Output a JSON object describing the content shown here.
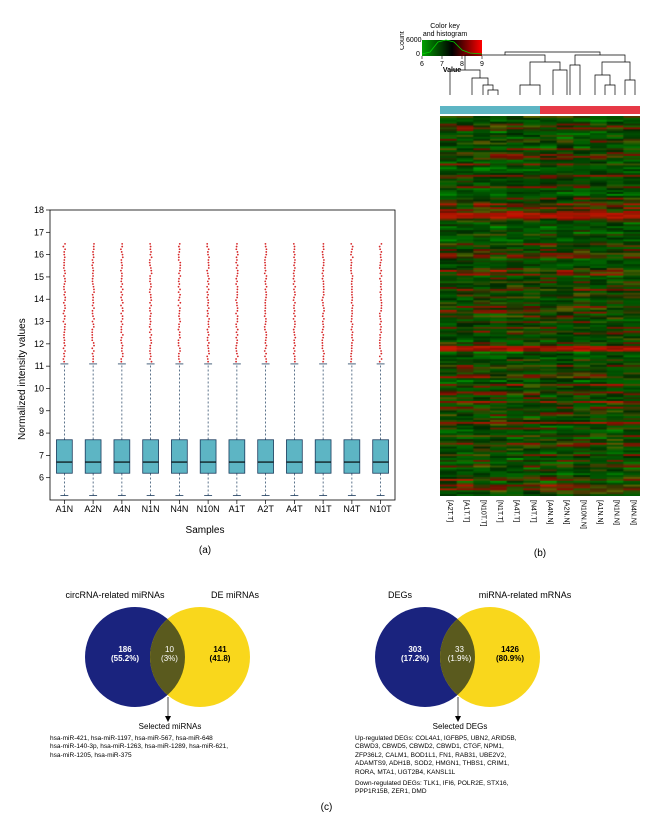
{
  "panel_a": {
    "caption": "(a)",
    "ylabel": "Normalized intensity values",
    "xlabel": "Samples",
    "ylim": [
      5,
      18
    ],
    "ytick_step": 1,
    "samples": [
      "A1N",
      "A2N",
      "A4N",
      "N1N",
      "N4N",
      "N10N",
      "A1T",
      "A2T",
      "A4T",
      "N1T",
      "N4T",
      "N10T"
    ],
    "box_color": "#5db5c4",
    "box_border": "#1a3a5c",
    "whisker_color": "#1a3a5c",
    "outlier_color": "#d62728",
    "median": 6.7,
    "q1": 6.2,
    "q3": 7.7,
    "whisker_low": 5.2,
    "whisker_high": 11.1,
    "outlier_top": 16.5,
    "background": "#ffffff"
  },
  "panel_b": {
    "caption": "(b)",
    "colorkey_title": "Color key\nand histogram",
    "colorkey_ylabel": "Count",
    "colorkey_ymax": "6000",
    "colorkey_ymin": "0",
    "colorkey_xlabel": "Value",
    "colorkey_ticks": [
      "6",
      "7",
      "8",
      "9"
    ],
    "gradient_low": "#00a000",
    "gradient_mid": "#000000",
    "gradient_high": "#ff0000",
    "group_bar_left": "#5db5c4",
    "group_bar_right": "#e63946",
    "sample_labels": [
      "[A2T.T]",
      "[A1T.T]",
      "[N10T.T]",
      "[N1T.T]",
      "[A4T.T]",
      "[N4T.T]",
      "[A4N.N]",
      "[A2N.N]",
      "[N10N.N]",
      "[A1N.N]",
      "[N1N.N]",
      "[N4N.N]"
    ],
    "heatmap_bg": "#0a2a0a"
  },
  "panel_c": {
    "caption": "(c)",
    "venn_left": {
      "title_a": "circRNA-related miRNAs",
      "title_b": "DE miRNAs",
      "color_a": "#1a237e",
      "color_b": "#f9d71c",
      "color_ab": "#5a5a1e",
      "count_a": "186\n(55.2%)",
      "count_ab": "10\n(3%)",
      "count_b": "141\n(41.8)",
      "arrow_label": "Selected miRNAs",
      "list": "hsa-miR-421, hsa-miR-1197, hsa-miR-567, hsa-miR-648\nhsa-miR-140-3p, hsa-miR-1263, hsa-miR-1289, hsa-miR-621,\nhsa-miR-1205, hsa-miR-375"
    },
    "venn_right": {
      "title_a": "DEGs",
      "title_b": "miRNA-related mRNAs",
      "color_a": "#1a237e",
      "color_b": "#f9d71c",
      "color_ab": "#5a5a1e",
      "count_a": "303\n(17.2%)",
      "count_ab": "33\n(1.9%)",
      "count_b": "1426\n(80.9%)",
      "arrow_label": "Selected DEGs",
      "list_up_label": "Up-regulated DEGs:",
      "list_up": "COL4A1, IGFBP5, UBN2, ARID5B,\nCBWD3, CBWD5, CBWD2, CBWD1, CTGF, NPM1,\nZFP36L2, CALM1, BOD1L1, FN1, RAB31, UBE2V2,\nADAMTS9, ADH1B, SOD2, HMGN1, THBS1, CRIM1,\nRORA, MTA1, UGT2B4, KANSL1L",
      "list_down_label": "Down-regulated DEGs:",
      "list_down": "TLK1, IFI6, POLR2E, STX16,\nPPP1R15B, ZER1, DMD"
    }
  }
}
